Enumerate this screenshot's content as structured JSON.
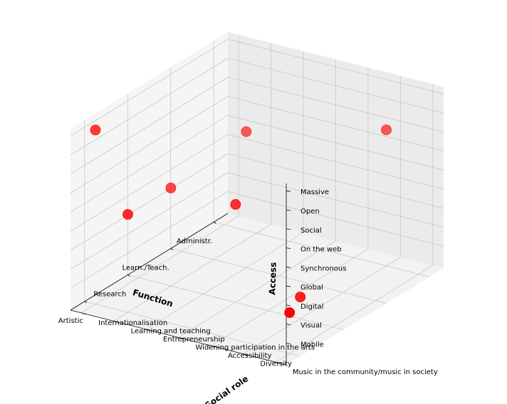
{
  "chart_data": {
    "type": "scatter",
    "projection": "3d",
    "xlabel": "Function",
    "ylabel": "Social role",
    "zlabel": "Access",
    "x_ticks": [
      "Administr.",
      "Learn./Teach.",
      "Research",
      "Artistic"
    ],
    "y_ticks": [
      "Music in the community/music in society",
      "Diversity",
      "Accessibility",
      "Widening participation in the arts",
      "Entrepreneurship",
      "Learning and teaching",
      "Internationalisation"
    ],
    "z_ticks": [
      "Mobile",
      "Visual",
      "Digital",
      "Global",
      "Synchronous",
      "On the web",
      "Social",
      "Open",
      "Massive"
    ],
    "point_color": "#ff0000",
    "grid": true,
    "points": [
      {
        "x": "Administr.",
        "y": "Diversity",
        "z": "Social"
      },
      {
        "x": "Learn./Teach.",
        "y": "Entrepreneurship",
        "z": "Social"
      },
      {
        "x": "Research",
        "y": "Diversity",
        "z": "Mobile"
      },
      {
        "x": "Research",
        "y": "Widening participation in the arts",
        "z": "Synchronous"
      },
      {
        "x": "Artistic",
        "y": "Music in the community/music in society",
        "z": "Visual"
      },
      {
        "x": "Artistic",
        "y": "Learning and teaching",
        "z": "Synchronous"
      },
      {
        "x": "Research",
        "y": "Learning and teaching",
        "z": "Synchronous"
      },
      {
        "x": "Artistic",
        "y": "Internationalisation",
        "z": "Massive"
      }
    ]
  }
}
